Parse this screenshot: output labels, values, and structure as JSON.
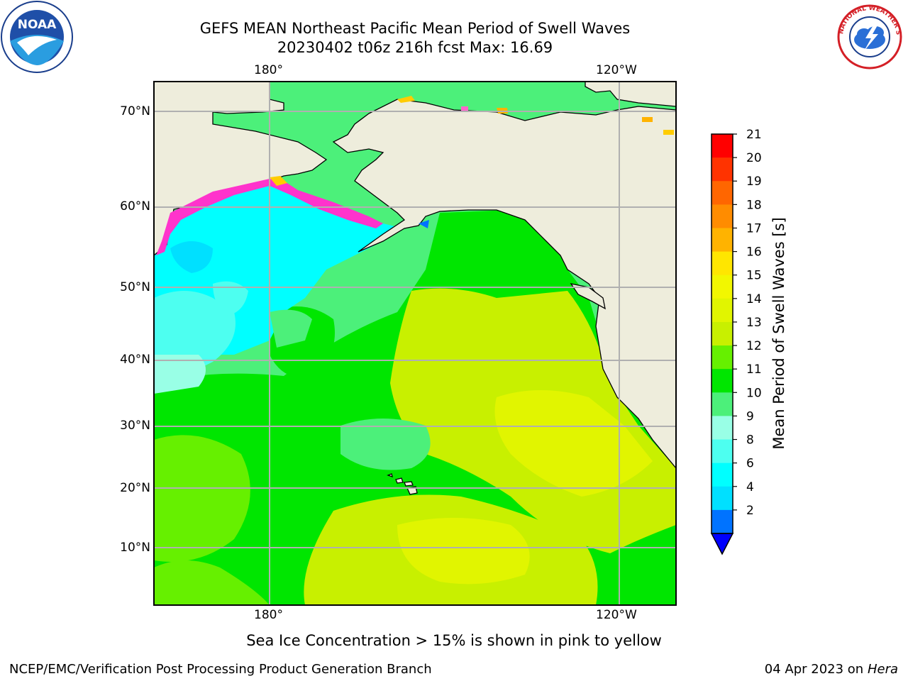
{
  "title": {
    "line1": "GEFS MEAN Northeast Pacific Mean Period of Swell Waves",
    "line2": "20230402 t06z 216h fcst   Max: 16.69"
  },
  "logos": {
    "left": "noaa-logo",
    "right": "nws-logo",
    "left_text": "NOAA",
    "right_text": "NATIONAL WEATHER SERVICE"
  },
  "map": {
    "top_lon_labels": [
      "180°",
      "120°W"
    ],
    "bottom_lon_labels": [
      "180°",
      "120°W"
    ],
    "lat_labels": [
      "70°N",
      "60°N",
      "50°N",
      "40°N",
      "30°N",
      "20°N",
      "10°N"
    ],
    "land_color": "#eeeddc",
    "grid_color": "#b0b0b0"
  },
  "colorbar": {
    "label": "Mean Period of Swell Waves [s]",
    "ticks": [
      "21",
      "20",
      "19",
      "18",
      "17",
      "16",
      "15",
      "14",
      "13",
      "12",
      "11",
      "10",
      "9",
      "8",
      "6",
      "4",
      "2"
    ],
    "colors": [
      "#ff0000",
      "#ff3300",
      "#ff6600",
      "#ff8c00",
      "#ffb300",
      "#ffe600",
      "#f2f700",
      "#e1f500",
      "#c8f000",
      "#66f000",
      "#00e600",
      "#4cf07a",
      "#99ffe6",
      "#4dfff0",
      "#00ffff",
      "#00e0ff",
      "#0073ff"
    ],
    "under_color": "#0000ff"
  },
  "note": "Sea Ice Concentration > 15% is shown in pink to yellow",
  "footer": {
    "left": "NCEP/EMC/Verification Post Processing Product Generation Branch",
    "right_prefix": "04 Apr 2023 on ",
    "right_host": "Hera"
  }
}
